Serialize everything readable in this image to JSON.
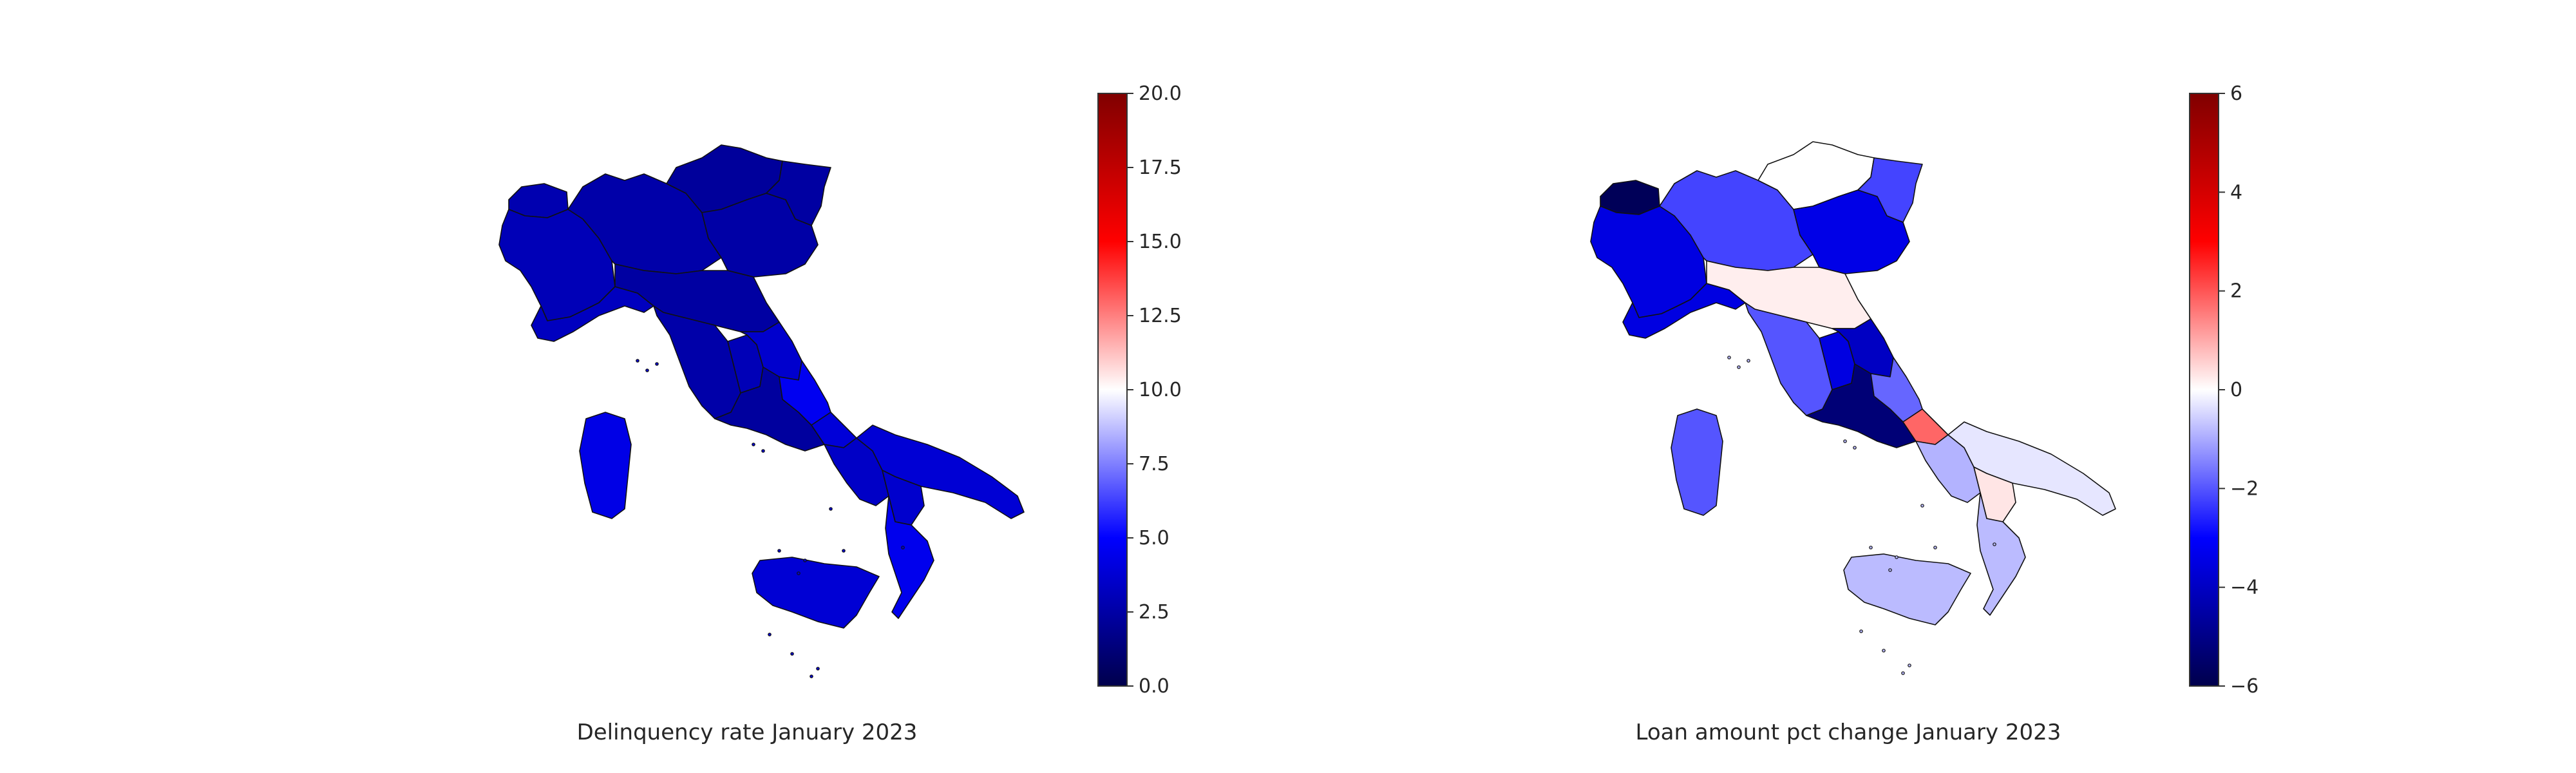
{
  "maps": [
    {
      "title": "Delinquency rate January 2023",
      "colorbar": {
        "min": 0,
        "max": 20,
        "tick_labels": [
          "0.0",
          "2.5",
          "5.0",
          "7.5",
          "10.0",
          "12.5",
          "15.0",
          "17.5",
          "20.0"
        ],
        "tick_values": [
          0,
          2.5,
          5,
          7.5,
          10,
          12.5,
          15,
          17.5,
          20
        ],
        "colormap": "seismic",
        "colors": [
          "#00004c",
          "#0000ff",
          "#ffffff",
          "#ff0000",
          "#800000"
        ]
      },
      "regions": {
        "piemonte": 3.0,
        "valle_d_aosta": 2.8,
        "lombardia": 2.6,
        "trentino": 2.2,
        "veneto": 2.5,
        "friuli": 2.4,
        "liguria": 3.2,
        "emilia_romagna": 2.4,
        "toscana": 2.6,
        "umbria": 3.0,
        "marche": 3.6,
        "lazio": 2.3,
        "abruzzo": 4.6,
        "molise": 3.9,
        "campania": 3.4,
        "puglia": 3.8,
        "basilicata": 3.6,
        "calabria": 4.5,
        "sicilia": 3.8,
        "sardegna": 4.3
      }
    },
    {
      "title": "Loan amount pct change January 2023",
      "colorbar": {
        "min": -6,
        "max": 6,
        "tick_labels": [
          "−6",
          "−4",
          "−2",
          "0",
          "2",
          "4",
          "6"
        ],
        "tick_values": [
          -6,
          -4,
          -2,
          0,
          2,
          4,
          6
        ],
        "colormap": "seismic",
        "colors": [
          "#00004c",
          "#0000ff",
          "#ffffff",
          "#ff0000",
          "#800000"
        ]
      },
      "regions": {
        "piemonte": -3.5,
        "valle_d_aosta": -5.8,
        "lombardia": -2.2,
        "trentino": 0.0,
        "veneto": -3.4,
        "friuli": -2.2,
        "liguria": -3.5,
        "emilia_romagna": 0.2,
        "toscana": -2.0,
        "umbria": -3.5,
        "marche": -4.0,
        "lazio": -5.3,
        "abruzzo": -1.8,
        "molise": 1.8,
        "campania": -0.9,
        "puglia": -0.3,
        "basilicata": 0.3,
        "calabria": -0.8,
        "sicilia": -0.8,
        "sardegna": -2.0
      }
    }
  ]
}
